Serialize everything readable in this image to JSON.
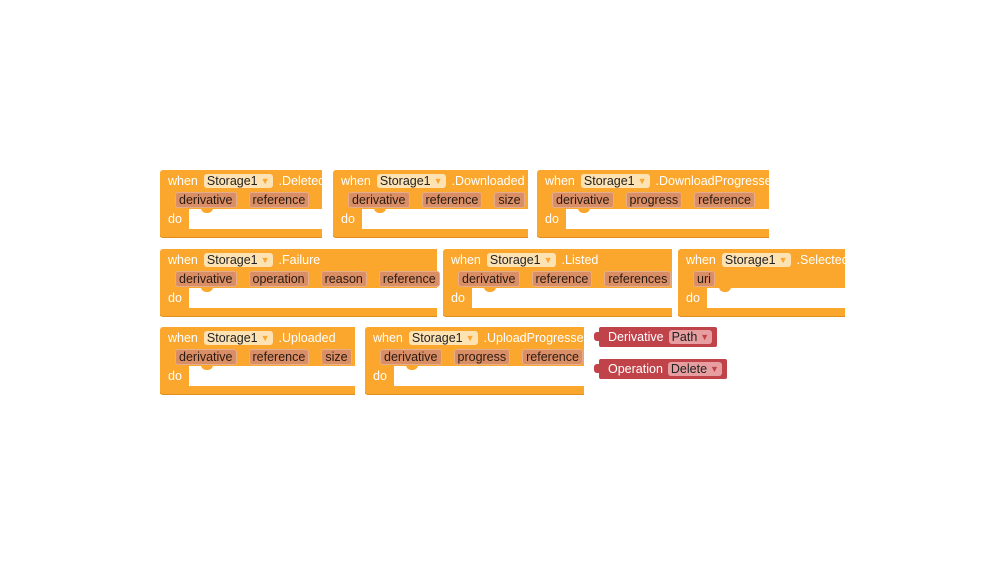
{
  "event_blocks": [
    {
      "keyword": "when",
      "component": "Storage1",
      "event": ".Deleted",
      "params": [
        "derivative",
        "reference"
      ],
      "do_label": "do"
    },
    {
      "keyword": "when",
      "component": "Storage1",
      "event": ".Downloaded",
      "params": [
        "derivative",
        "reference",
        "size"
      ],
      "do_label": "do"
    },
    {
      "keyword": "when",
      "component": "Storage1",
      "event": ".DownloadProgressed",
      "params": [
        "derivative",
        "progress",
        "reference"
      ],
      "do_label": "do"
    },
    {
      "keyword": "when",
      "component": "Storage1",
      "event": ".Failure",
      "params": [
        "derivative",
        "operation",
        "reason",
        "reference"
      ],
      "do_label": "do"
    },
    {
      "keyword": "when",
      "component": "Storage1",
      "event": ".Listed",
      "params": [
        "derivative",
        "reference",
        "references"
      ],
      "do_label": "do"
    },
    {
      "keyword": "when",
      "component": "Storage1",
      "event": ".Selected",
      "params": [
        "uri"
      ],
      "do_label": "do"
    },
    {
      "keyword": "when",
      "component": "Storage1",
      "event": ".Uploaded",
      "params": [
        "derivative",
        "reference",
        "size"
      ],
      "do_label": "do"
    },
    {
      "keyword": "when",
      "component": "Storage1",
      "event": ".UploadProgressed",
      "params": [
        "derivative",
        "progress",
        "reference"
      ],
      "do_label": "do"
    }
  ],
  "value_blocks": [
    {
      "label": "Derivative",
      "selected": "Path"
    },
    {
      "label": "Operation",
      "selected": "Delete"
    }
  ],
  "colors": {
    "event_block": "#fba62c",
    "value_block": "#c0434a",
    "param_chip": "#d98e66"
  }
}
